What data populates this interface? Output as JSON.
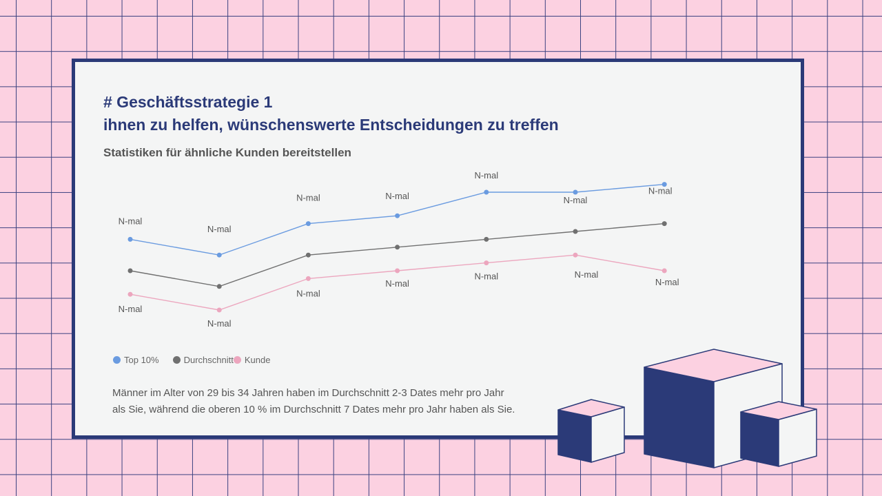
{
  "slide": {
    "title_line1": "# Geschäftsstrategie 1",
    "title_line2": "ihnen zu helfen, wünschenswerte Entscheidungen zu treffen",
    "subtitle": "Statistiken für ähnliche Kunden bereitstellen",
    "body_line1": "Männer im Alter von 29 bis 34 Jahren haben im Durchschnitt 2-3 Dates mehr pro Jahr",
    "body_line2": "als Sie, während die oberen 10 % im Durchschnitt 7 Dates mehr pro Jahr haben als Sie."
  },
  "colors": {
    "navy": "#2b3a78",
    "pink": "#fcd1e1",
    "panel": "#f4f5f5"
  },
  "chart_data": {
    "type": "line",
    "categories": [
      "",
      "",
      "",
      "",
      "",
      "",
      ""
    ],
    "series": [
      {
        "name": "Top 10%",
        "color": "#6a9be0",
        "values": [
          9,
          7,
          11,
          12,
          15,
          15,
          16
        ],
        "labels": [
          "N-mal",
          "N-mal",
          "N-mal",
          "N-mal",
          "N-mal",
          "N-mal",
          "N-mal"
        ]
      },
      {
        "name": "Durchschnitt",
        "color": "#707070",
        "values": [
          5,
          3,
          7,
          8,
          9,
          10,
          11
        ],
        "labels": []
      },
      {
        "name": "Kunde",
        "color": "#eca6be",
        "values": [
          2,
          0,
          4,
          5,
          6,
          7,
          5
        ],
        "labels": [
          "N-mal",
          "N-mal",
          "N-mal",
          "N-mal",
          "N-mal",
          "N-mal",
          "N-mal"
        ]
      }
    ],
    "axes_visible": false,
    "grid": false,
    "legend": "bottom-left"
  }
}
